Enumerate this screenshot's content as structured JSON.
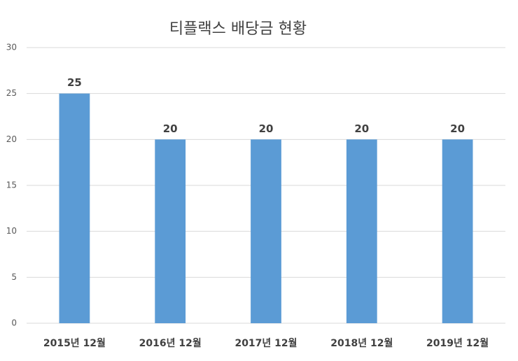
{
  "chart_data": {
    "type": "bar",
    "title": "티플랙스 배당금 현황",
    "categories": [
      "2015년 12월",
      "2016년 12월",
      "2017년 12월",
      "2018년 12월",
      "2019년 12월"
    ],
    "values": [
      25,
      20,
      20,
      20,
      20
    ],
    "color": "#5b9bd5",
    "ylim": [
      0,
      30
    ],
    "yticks": [
      0,
      5,
      10,
      15,
      20,
      25,
      30
    ],
    "grid": true
  }
}
